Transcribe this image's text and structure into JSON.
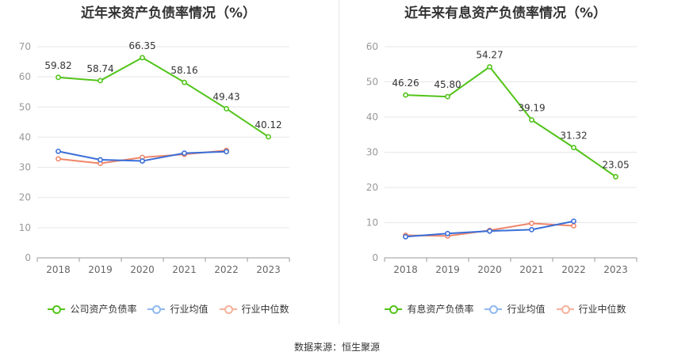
{
  "charts": [
    {
      "title": "近年来资产负债率情况（%）",
      "legend": [
        {
          "label": "公司资产负债率",
          "color": "#52c41a"
        },
        {
          "label": "行业均值",
          "color": "#8fb8f0"
        },
        {
          "label": "行业中位数",
          "color": "#f5b29a"
        }
      ]
    },
    {
      "title": "近年来有息资产负债率情况（%）",
      "legend": [
        {
          "label": "有息资产负债率",
          "color": "#52c41a"
        },
        {
          "label": "行业均值",
          "color": "#8fb8f0"
        },
        {
          "label": "行业中位数",
          "color": "#f5b29a"
        }
      ]
    }
  ],
  "source": "数据来源：恒生聚源",
  "chart_data": [
    {
      "type": "line",
      "title": "近年来资产负债率情况（%）",
      "categories": [
        "2018",
        "2019",
        "2020",
        "2021",
        "2022",
        "2023"
      ],
      "ylim": [
        0,
        70
      ],
      "yticks": [
        0,
        10,
        20,
        30,
        40,
        50,
        60,
        70
      ],
      "grid": true,
      "legend_position": "bottom",
      "series": [
        {
          "name": "公司资产负债率",
          "color": "#52c41a",
          "values": [
            59.82,
            58.74,
            66.35,
            58.16,
            49.43,
            40.12
          ],
          "labels": [
            "59.82",
            "58.74",
            "66.35",
            "58.16",
            "49.43",
            "40.12"
          ]
        },
        {
          "name": "行业均值",
          "color": "#3a6fd8",
          "values": [
            35.3,
            32.5,
            32.1,
            34.7,
            35.2,
            null
          ]
        },
        {
          "name": "行业中位数",
          "color": "#f0866a",
          "values": [
            32.8,
            31.3,
            33.3,
            34.3,
            35.6,
            null
          ]
        }
      ]
    },
    {
      "type": "line",
      "title": "近年来有息资产负债率情况（%）",
      "categories": [
        "2018",
        "2019",
        "2020",
        "2021",
        "2022",
        "2023"
      ],
      "ylim": [
        0,
        60
      ],
      "yticks": [
        0,
        10,
        20,
        30,
        40,
        50,
        60
      ],
      "grid": true,
      "legend_position": "bottom",
      "series": [
        {
          "name": "有息资产负债率",
          "color": "#52c41a",
          "values": [
            46.26,
            45.8,
            54.27,
            39.19,
            31.32,
            23.05
          ],
          "labels": [
            "46.26",
            "45.80",
            "54.27",
            "39.19",
            "31.32",
            "23.05"
          ]
        },
        {
          "name": "行业均值",
          "color": "#3a6fd8",
          "values": [
            6.0,
            6.9,
            7.6,
            8.0,
            10.4,
            null
          ]
        },
        {
          "name": "行业中位数",
          "color": "#f0866a",
          "values": [
            6.4,
            6.2,
            7.8,
            9.8,
            9.1,
            null
          ]
        }
      ]
    }
  ]
}
